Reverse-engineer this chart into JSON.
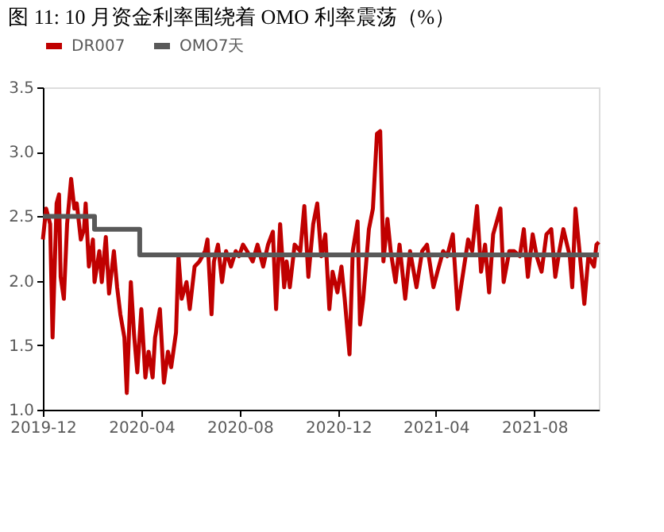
{
  "chart_data": {
    "type": "line",
    "title": "图 11:      10 月资金利率围绕着 OMO 利率震荡（%）",
    "xlim": [
      "2019-12-01",
      "2021-10-20"
    ],
    "xticks": [
      "2019-12",
      "2020-04",
      "2020-08",
      "2020-12",
      "2021-04",
      "2021-08"
    ],
    "ylim": [
      1.0,
      3.5
    ],
    "yticks": [
      {
        "value": 1.0,
        "label": "1.0"
      },
      {
        "value": 1.5,
        "label": "1.5"
      },
      {
        "value": 2.0,
        "label": "2.0"
      },
      {
        "value": 2.5,
        "label": "2.5"
      },
      {
        "value": 3.0,
        "label": "3.0"
      },
      {
        "value": 3.5,
        "label": "3.5"
      }
    ],
    "grid": false,
    "legend": "top",
    "line_style": "solid",
    "marker": "none",
    "series": [
      {
        "name": "DR007",
        "color": "#c00000",
        "x": [
          "2019-12-01",
          "2019-12-05",
          "2019-12-10",
          "2019-12-13",
          "2019-12-18",
          "2019-12-21",
          "2019-12-23",
          "2019-12-27",
          "2019-12-31",
          "2020-01-05",
          "2020-01-09",
          "2020-01-12",
          "2020-01-17",
          "2020-01-21",
          "2020-01-23",
          "2020-01-27",
          "2020-02-01",
          "2020-02-03",
          "2020-02-09",
          "2020-02-12",
          "2020-02-17",
          "2020-02-21",
          "2020-02-27",
          "2020-03-02",
          "2020-03-06",
          "2020-03-11",
          "2020-03-14",
          "2020-03-19",
          "2020-03-23",
          "2020-03-27",
          "2020-04-01",
          "2020-04-06",
          "2020-04-10",
          "2020-04-15",
          "2020-04-18",
          "2020-04-24",
          "2020-04-29",
          "2020-05-04",
          "2020-05-08",
          "2020-05-14",
          "2020-05-17",
          "2020-05-21",
          "2020-05-27",
          "2020-05-31",
          "2020-06-06",
          "2020-06-12",
          "2020-06-19",
          "2020-06-22",
          "2020-06-27",
          "2020-06-30",
          "2020-07-05",
          "2020-07-10",
          "2020-07-15",
          "2020-07-21",
          "2020-07-27",
          "2020-07-31",
          "2020-08-05",
          "2020-08-10",
          "2020-08-17",
          "2020-08-23",
          "2020-08-30",
          "2020-09-05",
          "2020-09-11",
          "2020-09-15",
          "2020-09-20",
          "2020-09-25",
          "2020-09-28",
          "2020-10-02",
          "2020-10-08",
          "2020-10-15",
          "2020-10-20",
          "2020-10-25",
          "2020-10-31",
          "2020-11-05",
          "2020-11-10",
          "2020-11-15",
          "2020-11-20",
          "2020-11-24",
          "2020-11-30",
          "2020-12-05",
          "2020-12-09",
          "2020-12-15",
          "2020-12-19",
          "2020-12-25",
          "2020-12-28",
          "2021-01-01",
          "2021-01-08",
          "2021-01-13",
          "2021-01-18",
          "2021-01-22",
          "2021-01-26",
          "2021-01-31",
          "2021-02-04",
          "2021-02-10",
          "2021-02-15",
          "2021-02-22",
          "2021-02-28",
          "2021-03-08",
          "2021-03-15",
          "2021-03-21",
          "2021-03-29",
          "2021-04-03",
          "2021-04-10",
          "2021-04-15",
          "2021-04-22",
          "2021-04-28",
          "2021-05-05",
          "2021-05-11",
          "2021-05-16",
          "2021-05-22",
          "2021-05-27",
          "2021-06-01",
          "2021-06-06",
          "2021-06-11",
          "2021-06-20",
          "2021-06-24",
          "2021-07-01",
          "2021-07-07",
          "2021-07-14",
          "2021-07-19",
          "2021-07-24",
          "2021-07-30",
          "2021-08-04",
          "2021-08-10",
          "2021-08-16",
          "2021-08-22",
          "2021-08-27",
          "2021-09-01",
          "2021-09-06",
          "2021-09-14",
          "2021-09-17",
          "2021-09-21",
          "2021-09-26",
          "2021-10-02",
          "2021-10-07",
          "2021-10-14",
          "2021-10-17",
          "2021-10-20"
        ],
        "values": [
          2.32,
          2.56,
          2.44,
          1.56,
          2.6,
          2.67,
          2.03,
          1.86,
          2.44,
          2.79,
          2.56,
          2.6,
          2.32,
          2.4,
          2.6,
          2.11,
          2.32,
          1.99,
          2.23,
          1.99,
          2.34,
          1.9,
          2.23,
          1.95,
          1.74,
          1.56,
          1.13,
          1.99,
          1.58,
          1.29,
          1.78,
          1.25,
          1.45,
          1.25,
          1.56,
          1.78,
          1.21,
          1.45,
          1.33,
          1.6,
          2.19,
          1.86,
          1.99,
          1.78,
          2.11,
          2.15,
          2.23,
          2.32,
          1.74,
          2.15,
          2.28,
          1.99,
          2.23,
          2.11,
          2.23,
          2.19,
          2.28,
          2.23,
          2.15,
          2.28,
          2.11,
          2.28,
          2.38,
          1.78,
          2.44,
          1.95,
          2.15,
          1.95,
          2.28,
          2.23,
          2.58,
          2.03,
          2.44,
          2.6,
          2.19,
          2.36,
          1.78,
          2.07,
          1.91,
          2.11,
          1.86,
          1.43,
          2.23,
          2.46,
          1.66,
          1.86,
          2.4,
          2.56,
          3.14,
          3.16,
          2.15,
          2.48,
          2.23,
          1.99,
          2.28,
          1.86,
          2.23,
          1.95,
          2.23,
          2.28,
          1.95,
          2.07,
          2.23,
          2.19,
          2.36,
          1.78,
          2.07,
          2.32,
          2.23,
          2.58,
          2.07,
          2.28,
          1.91,
          2.36,
          2.56,
          1.99,
          2.23,
          2.23,
          2.19,
          2.4,
          2.03,
          2.36,
          2.19,
          2.07,
          2.36,
          2.4,
          2.03,
          2.23,
          2.4,
          2.19,
          1.95,
          2.56,
          2.23,
          1.82,
          2.19,
          2.11,
          2.28,
          2.3
        ]
      },
      {
        "name": "OMO7天",
        "color": "#595959",
        "type": "step",
        "x": [
          "2019-12-01",
          "2020-02-03",
          "2020-03-30",
          "2021-10-20"
        ],
        "values": [
          2.5,
          2.4,
          2.2,
          2.2
        ]
      }
    ]
  }
}
